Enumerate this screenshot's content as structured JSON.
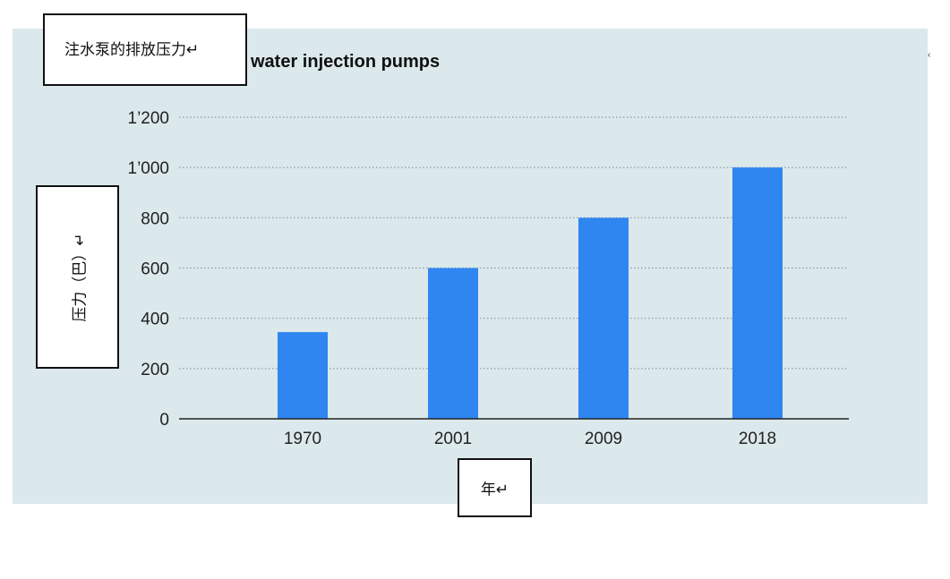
{
  "chart_data": {
    "type": "bar",
    "title": "water injection pumps",
    "title_label": "注水泵的排放压力↵",
    "ylabel": "压力（巴）↵",
    "xlabel": "年↵",
    "categories": [
      "1970",
      "2001",
      "2009",
      "2018"
    ],
    "values": [
      345,
      600,
      800,
      1000
    ],
    "ylim": [
      0,
      1200
    ],
    "yticks": [
      {
        "value": 0,
        "label": "0"
      },
      {
        "value": 200,
        "label": "200"
      },
      {
        "value": 400,
        "label": "400"
      },
      {
        "value": 600,
        "label": "600"
      },
      {
        "value": 800,
        "label": "800"
      },
      {
        "value": 1000,
        "label": "1’000"
      },
      {
        "value": 1200,
        "label": "1’200"
      }
    ],
    "grid": true,
    "gridline_style": "dotted",
    "legend": "none",
    "colors": {
      "bar": "#2f86f0",
      "panel": "#dbe8ec",
      "grid": "#8a9ba3",
      "axis": "#222222"
    }
  },
  "edge_mark": "‹"
}
